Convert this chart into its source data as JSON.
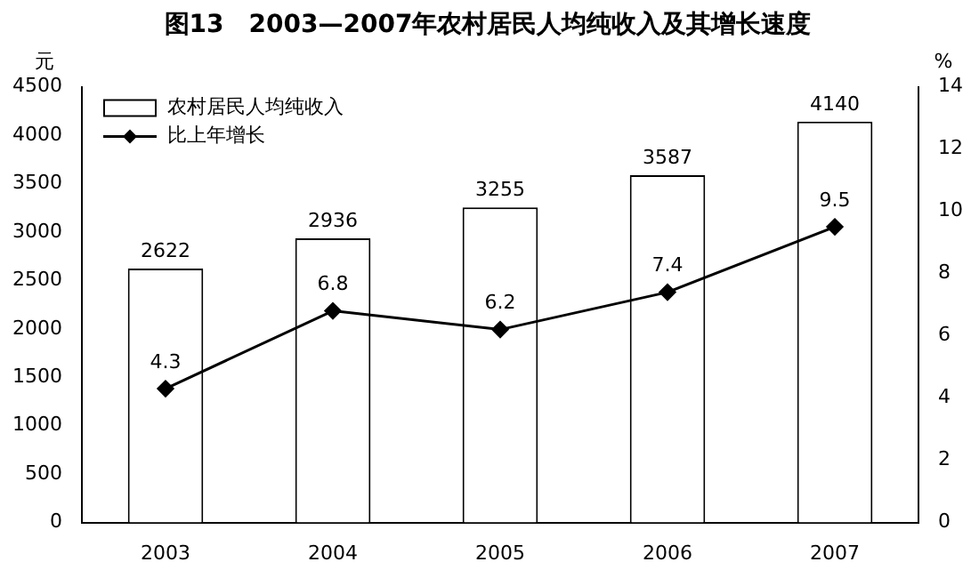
{
  "chart_data": {
    "type": "bar",
    "title": "图13　2003—2007年农村居民人均纯收入及其增长速度",
    "ylabel": "元",
    "y2label": "%",
    "categories": [
      "2003",
      "2004",
      "2005",
      "2006",
      "2007"
    ],
    "series": [
      {
        "name": "农村居民人均纯收入",
        "color": "#ffffff",
        "values": [
          2622,
          2936,
          3255,
          3587,
          4140
        ]
      },
      {
        "name": "比上年增长",
        "type": "line",
        "axis": "y2",
        "color": "#000000",
        "values": [
          4.3,
          6.8,
          6.2,
          7.4,
          9.5
        ]
      }
    ],
    "ylim": [
      0,
      4500
    ],
    "yticks": [
      0,
      500,
      1000,
      1500,
      2000,
      2500,
      3000,
      3500,
      4000,
      4500
    ],
    "y2lim": [
      0,
      14
    ],
    "y2ticks": [
      0,
      2,
      4,
      6,
      8,
      10,
      12,
      14
    ],
    "data_labels": true,
    "legend": "top left",
    "grid": false,
    "marker": "diamond",
    "line_style": "solid"
  }
}
